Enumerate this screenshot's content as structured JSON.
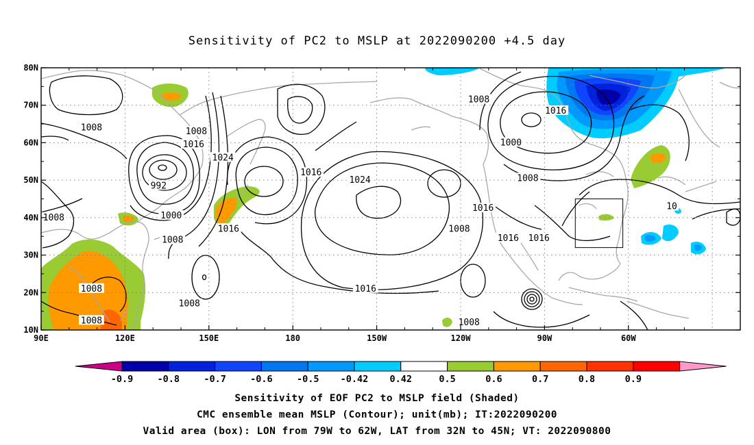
{
  "title": "Sensitivity of PC2 to MSLP at 2022090200 +4.5 day",
  "lon_ticks": [
    "90E",
    "120E",
    "150E",
    "180",
    "150W",
    "120W",
    "90W",
    "60W"
  ],
  "lat_ticks": [
    "80N",
    "70N",
    "60N",
    "50N",
    "40N",
    "30N",
    "20N",
    "10N"
  ],
  "contour_labels": [
    {
      "text": "1008",
      "lon": 94.5,
      "lat": 40.0
    },
    {
      "text": "1008",
      "lon": 108.0,
      "lat": 21.0
    },
    {
      "text": "1008",
      "lon": 108.0,
      "lat": 12.5
    },
    {
      "text": "1008",
      "lon": 108.0,
      "lat": 64.0
    },
    {
      "text": "992",
      "lon": 132.0,
      "lat": 48.5
    },
    {
      "text": "1000",
      "lon": 136.5,
      "lat": 40.5
    },
    {
      "text": "1008",
      "lon": 137.0,
      "lat": 34.0
    },
    {
      "text": "1008",
      "lon": 145.5,
      "lat": 63.0
    },
    {
      "text": "1016",
      "lon": 144.5,
      "lat": 59.5
    },
    {
      "text": "1024",
      "lon": 155.0,
      "lat": 56.0
    },
    {
      "text": "1016",
      "lon": 157.0,
      "lat": 37.0
    },
    {
      "text": "1008",
      "lon": 143.0,
      "lat": 17.0
    },
    {
      "text": "1016",
      "lon": 186.5,
      "lat": 52.0
    },
    {
      "text": "1024",
      "lon": 204.0,
      "lat": 50.0
    },
    {
      "text": "1016",
      "lon": 206.0,
      "lat": 21.0
    },
    {
      "text": "1008",
      "lon": 246.5,
      "lat": 71.5
    },
    {
      "text": "1000",
      "lon": 258.0,
      "lat": 60.0
    },
    {
      "text": "1016",
      "lon": 274.0,
      "lat": 68.5
    },
    {
      "text": "1008",
      "lon": 264.0,
      "lat": 50.5
    },
    {
      "text": "1016",
      "lon": 248.0,
      "lat": 42.5
    },
    {
      "text": "1008",
      "lon": 239.5,
      "lat": 37.0
    },
    {
      "text": "1016",
      "lon": 257.0,
      "lat": 34.5
    },
    {
      "text": "1016",
      "lon": 268.0,
      "lat": 34.5
    },
    {
      "text": "1008",
      "lon": 243.0,
      "lat": 12.0
    },
    {
      "text": "10",
      "lon": 315.5,
      "lat": 43.0
    }
  ],
  "colorbar": {
    "labels": [
      "-0.9",
      "-0.8",
      "-0.7",
      "-0.6",
      "-0.5",
      "-0.42",
      "0.42",
      "0.5",
      "0.6",
      "0.7",
      "0.8",
      "0.9"
    ],
    "colors": [
      "#0000a8",
      "#0022dd",
      "#1144ff",
      "#0077ee",
      "#0099ff",
      "#00ccff",
      "#ffffff",
      "#99cc33",
      "#ff9900",
      "#ff6600",
      "#ff3300",
      "#ff0000"
    ],
    "low_extend_color": "#cc0088",
    "high_extend_color": "#ff99cc"
  },
  "valid_box": {
    "lon_min": -79,
    "lon_max": -62,
    "lat_min": 32,
    "lat_max": 45
  },
  "captions": [
    "Sensitivity of EOF PC2 to MSLP field (Shaded)",
    "CMC ensemble mean MSLP (Contour); unit(mb); IT:2022090200",
    "Valid area (box): LON from 79W to 62W, LAT from 32N to 45N; VT: 2022090800"
  ]
}
